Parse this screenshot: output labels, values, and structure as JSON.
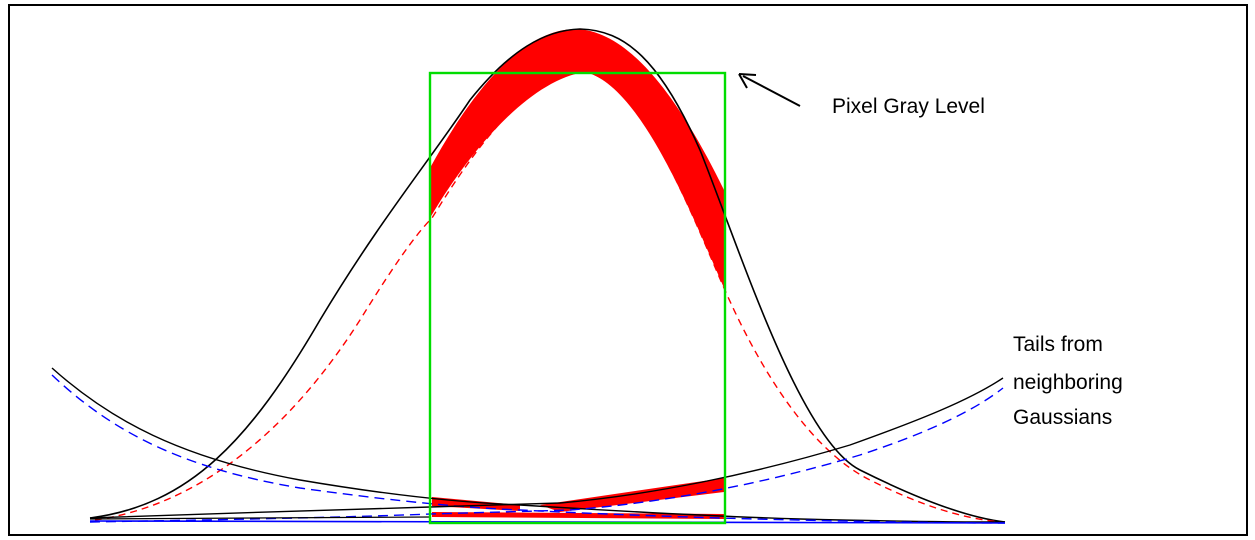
{
  "labels": {
    "pixel_gray_level": "Pixel Gray Level",
    "tails_line1": "Tails from",
    "tails_line2": "neighboring",
    "tails_line3": "Gaussians"
  },
  "colors": {
    "curve": "#000000",
    "fitted_center": "#ff0000",
    "fitted_tails": "#0000ff",
    "error_fill": "#ff0000",
    "window": "#00dd00",
    "background": "#ffffff"
  }
}
